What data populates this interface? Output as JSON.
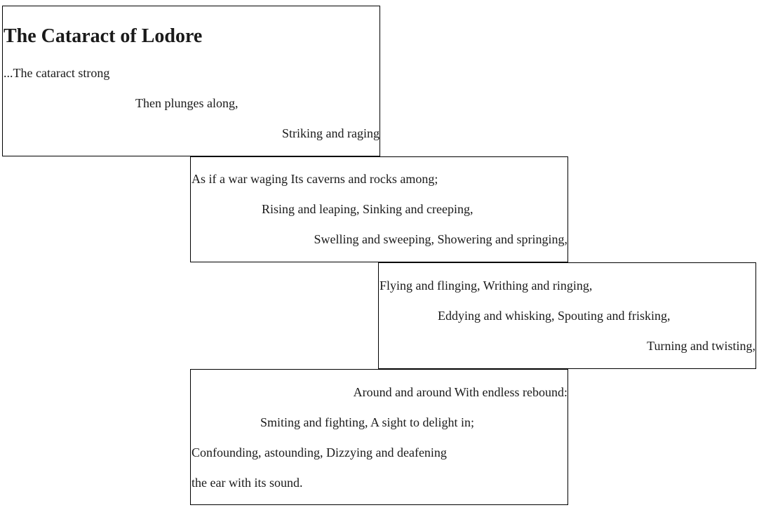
{
  "title": "The Cataract of Lodore",
  "stanzas": [
    {
      "lines": [
        "...The cataract strong",
        "Then plunges along,",
        "Striking and raging"
      ]
    },
    {
      "lines": [
        "As if a war waging Its caverns and rocks among;",
        "Rising and leaping, Sinking and creeping,",
        "Swelling and sweeping, Showering and springing,"
      ]
    },
    {
      "lines": [
        "Flying and flinging, Writhing and ringing,",
        "Eddying and whisking, Spouting and frisking,",
        "Turning and twisting,"
      ]
    },
    {
      "lines": [
        "Around and around With endless rebound:",
        "Smiting and fighting, A sight to delight in;",
        "Confounding, astounding, Dizzying and deafening",
        "the ear with its sound."
      ]
    }
  ]
}
